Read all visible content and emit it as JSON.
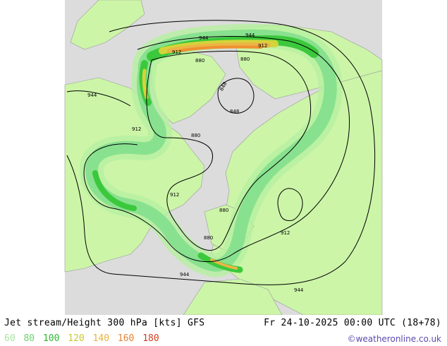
{
  "map": {
    "contour_labels": [
      {
        "text": "944",
        "id": "c944-a"
      },
      {
        "text": "944",
        "id": "c944-b"
      },
      {
        "text": "912",
        "id": "c912-a"
      },
      {
        "text": "912",
        "id": "c912-b"
      },
      {
        "text": "880",
        "id": "c880-a"
      },
      {
        "text": "880",
        "id": "c880-b"
      },
      {
        "text": "848",
        "id": "c848-a"
      },
      {
        "text": "848",
        "id": "c848-b"
      },
      {
        "text": "944",
        "id": "c944-c"
      },
      {
        "text": "912",
        "id": "c912-c"
      },
      {
        "text": "880",
        "id": "c880-c"
      },
      {
        "text": "912",
        "id": "c912-d"
      },
      {
        "text": "880",
        "id": "c880-d"
      },
      {
        "text": "880",
        "id": "c880-e"
      },
      {
        "text": "912",
        "id": "c912-e"
      },
      {
        "text": "944",
        "id": "c944-d"
      },
      {
        "text": "944",
        "id": "c944-e"
      }
    ],
    "colors": {
      "land": "#ccf5a8",
      "ocean": "#dcdcdc",
      "background": "#ffffff",
      "jet_60": "#b6f0a0",
      "jet_80": "#88e18f",
      "jet_100": "#3cc83c",
      "jet_120": "#d4d43a",
      "jet_140": "#ebb545",
      "jet_160": "#f09030",
      "jet_180": "#e05020"
    }
  },
  "footer": {
    "title": "Jet stream/Height 300 hPa [kts] GFS",
    "datetime": "Fr 24-10-2025 00:00 UTC (18+78)",
    "credit": "©weatheronline.co.uk",
    "legend": [
      {
        "label": "60",
        "color": "#a8e6a0"
      },
      {
        "label": "80",
        "color": "#6ed26e"
      },
      {
        "label": "100",
        "color": "#2eb82e"
      },
      {
        "label": "120",
        "color": "#c8c832"
      },
      {
        "label": "140",
        "color": "#e6b43c"
      },
      {
        "label": "160",
        "color": "#e68232"
      },
      {
        "label": "180",
        "color": "#d23c1e"
      }
    ]
  }
}
